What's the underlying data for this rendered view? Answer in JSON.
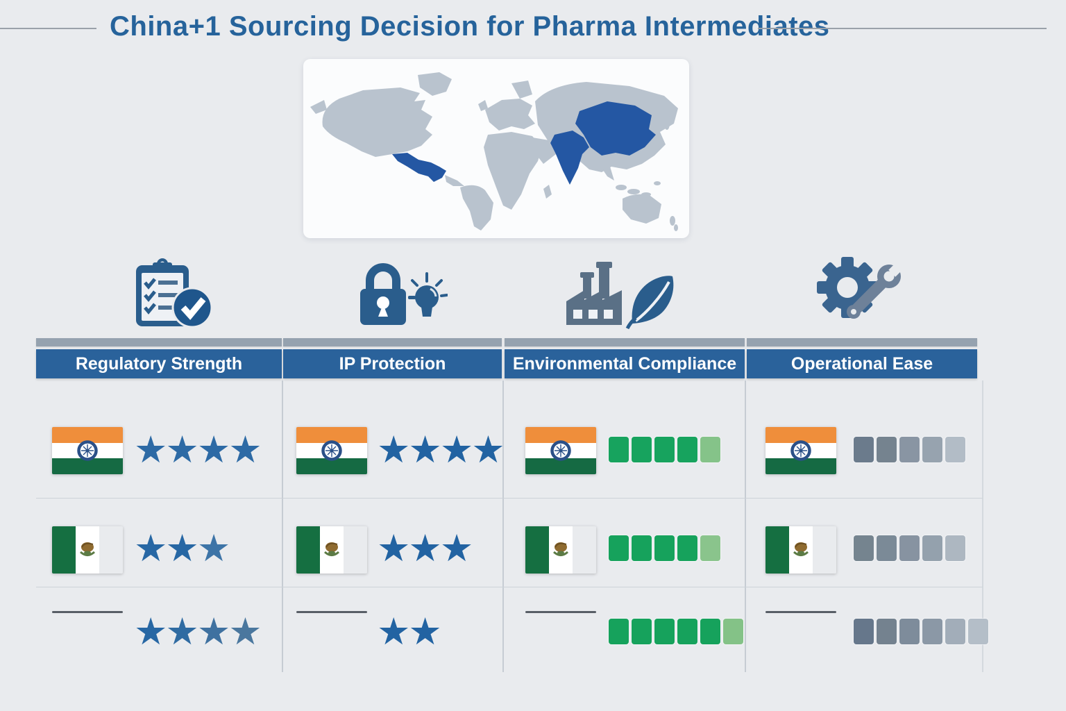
{
  "title": "China+1 Sourcing Decision for Pharma Intermediates",
  "colors": {
    "background": "#e9ebee",
    "title_text": "#26639b",
    "header_bg": "#2a629b",
    "header_text": "#ffffff",
    "header_topbar": "#95a2af",
    "star_blue": "#2767a4",
    "green_filled": "#17a35e",
    "green_partial": "#85c389",
    "map_land": "#b9c3ce",
    "map_highlight": "#2457a3"
  },
  "map": {
    "highlighted_regions": [
      "Mexico",
      "India",
      "China"
    ]
  },
  "columns": [
    {
      "label": "Regulatory Strength",
      "icon": "clipboard-check-icon"
    },
    {
      "label": "IP Protection",
      "icon": "lock-bulb-icon"
    },
    {
      "label": "Environmental Compliance",
      "icon": "factory-leaf-icon"
    },
    {
      "label": "Operational Ease",
      "icon": "gear-wrench-icon"
    }
  ],
  "rows": [
    {
      "country": "India",
      "flag": "india",
      "cells": [
        {
          "type": "stars",
          "count": 4,
          "colors": [
            "#2d6aa5",
            "#2d6aa5",
            "#2d6aa5",
            "#2d6aa5"
          ]
        },
        {
          "type": "stars",
          "count": 4,
          "colors": [
            "#2263a2",
            "#2263a2",
            "#2263a2",
            "#2263a2"
          ]
        },
        {
          "type": "squares",
          "filled": 4,
          "total": 5,
          "colors": [
            "#17a35e",
            "#17a35e",
            "#17a35e",
            "#17a35e",
            "#85c389"
          ]
        },
        {
          "type": "squares",
          "filled": 5,
          "total": 5,
          "colors": [
            "#6b7b8c",
            "#75838f",
            "#8995a3",
            "#97a3af",
            "#b2bcc6"
          ]
        }
      ]
    },
    {
      "country": "Mexico",
      "flag": "mexico",
      "cells": [
        {
          "type": "stars",
          "count": 3,
          "colors": [
            "#2767a4",
            "#2767a4",
            "#3d74a7"
          ]
        },
        {
          "type": "stars",
          "count": 3,
          "colors": [
            "#2263a2",
            "#2263a2",
            "#2263a2"
          ]
        },
        {
          "type": "squares",
          "filled": 4,
          "total": 5,
          "colors": [
            "#16a25c",
            "#16a25c",
            "#16a25c",
            "#16a25c",
            "#8ac48c"
          ]
        },
        {
          "type": "squares",
          "filled": 5,
          "total": 5,
          "colors": [
            "#75848f",
            "#7b8a97",
            "#8793a1",
            "#94a1ad",
            "#adb7c1"
          ]
        }
      ]
    },
    {
      "country": "",
      "flag": "none",
      "cells": [
        {
          "type": "stars",
          "count": 4,
          "colors": [
            "#2767a4",
            "#2f6ba2",
            "#3f71a0",
            "#4a779e"
          ]
        },
        {
          "type": "stars",
          "count": 2,
          "colors": [
            "#2263a2",
            "#2263a2"
          ]
        },
        {
          "type": "squares",
          "filled": 5,
          "total": 6,
          "colors": [
            "#16a25c",
            "#16a25c",
            "#16a25c",
            "#16a25c",
            "#16a25c",
            "#84c287"
          ]
        },
        {
          "type": "squares",
          "filled": 6,
          "total": 6,
          "colors": [
            "#66778b",
            "#74828f",
            "#7e8c9b",
            "#8b98a6",
            "#a2adb9",
            "#b4bec8"
          ]
        }
      ]
    }
  ],
  "chart_data": {
    "type": "table",
    "title": "China+1 Sourcing Decision for Pharma Intermediates",
    "columns": [
      "Regulatory Strength",
      "IP Protection",
      "Environmental Compliance",
      "Operational Ease"
    ],
    "rows": [
      {
        "country": "India",
        "regulatory_stars": 4,
        "ip_stars": 4,
        "environmental_filled": 4,
        "environmental_total": 5,
        "operational_squares": 5
      },
      {
        "country": "Mexico",
        "regulatory_stars": 3,
        "ip_stars": 3,
        "environmental_filled": 4,
        "environmental_total": 5,
        "operational_squares": 5
      },
      {
        "country": "",
        "regulatory_stars": 4,
        "ip_stars": 2,
        "environmental_filled": 5,
        "environmental_total": 6,
        "operational_squares": 6
      }
    ],
    "legend_position": "none",
    "grid": false
  }
}
